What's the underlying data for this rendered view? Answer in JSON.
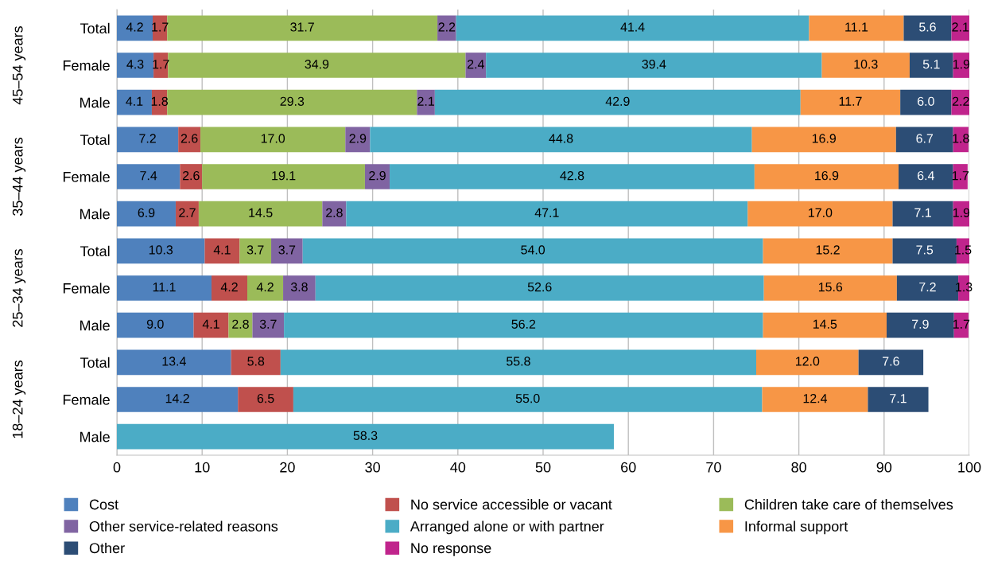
{
  "chart_data": {
    "type": "bar",
    "orientation": "horizontal",
    "stacked": true,
    "grid": "x",
    "legend": "bottom",
    "categories": [
      "Total",
      "Female",
      "Male",
      "Total",
      "Female",
      "Male",
      "Total",
      "Female",
      "Male",
      "Total",
      "Female",
      "Male"
    ],
    "annotations": [
      "45–54 years",
      "35–44 years",
      "25–34 years",
      "18–24 years"
    ],
    "xlim": [
      0,
      100
    ],
    "xticks": [
      0,
      10,
      20,
      30,
      40,
      50,
      60,
      70,
      80,
      90,
      100
    ],
    "series": [
      {
        "name": "Cost",
        "color": "#4f81bd",
        "values": [
          4.2,
          4.3,
          4.1,
          7.2,
          7.4,
          6.9,
          10.3,
          11.1,
          9.0,
          13.4,
          14.2,
          null
        ],
        "value_labels": [
          "4.2",
          "4.3",
          "4.1",
          "7.2",
          "7.4",
          "6.9",
          "10.3",
          "11.1",
          "9.0",
          "13.4",
          "14.2",
          null
        ]
      },
      {
        "name": "No service accessible or vacant",
        "color": "#c0504d",
        "values": [
          1.7,
          1.7,
          1.8,
          2.6,
          2.6,
          2.7,
          4.1,
          4.2,
          4.1,
          5.8,
          6.5,
          null
        ],
        "value_labels": [
          "1.7",
          "1.7",
          "1.8",
          "2.6",
          "2.6",
          "2.7",
          "4.1",
          "4.2",
          "4.1",
          "5.8",
          "6.5",
          null
        ]
      },
      {
        "name": "Children take care of themselves",
        "color": "#9bbb59",
        "values": [
          31.7,
          34.9,
          29.3,
          17.0,
          19.1,
          14.5,
          3.7,
          4.2,
          2.8,
          null,
          null,
          null
        ],
        "value_labels": [
          "31.7",
          "34.9",
          "29.3",
          "17.0",
          "19.1",
          "14.5",
          "3.7",
          "4.2",
          "2.8",
          null,
          null,
          null
        ]
      },
      {
        "name": "Other service-related reasons",
        "color": "#8064a2",
        "values": [
          2.2,
          2.4,
          2.1,
          2.9,
          2.9,
          2.8,
          3.7,
          3.8,
          3.7,
          null,
          null,
          null
        ],
        "value_labels": [
          "2.2",
          "2.4",
          "2.1",
          "2.9",
          "2.9",
          "2.8",
          "3.7",
          "3.8",
          "3.7",
          null,
          null,
          null
        ]
      },
      {
        "name": "Arranged alone or with partner",
        "color": "#4bacc6",
        "values": [
          41.4,
          39.4,
          42.9,
          44.8,
          42.8,
          47.1,
          54.0,
          52.6,
          56.2,
          55.8,
          55.0,
          58.3
        ],
        "value_labels": [
          "41.4",
          "39.4",
          "42.9",
          "44.8",
          "42.8",
          "47.1",
          "54.0",
          "52.6",
          "56.2",
          "55.8",
          "55.0",
          "58.3"
        ]
      },
      {
        "name": "Informal support",
        "color": "#f79646",
        "values": [
          11.1,
          10.3,
          11.7,
          16.9,
          16.9,
          17.0,
          15.2,
          15.6,
          14.5,
          12.0,
          12.4,
          null
        ],
        "value_labels": [
          "11.1",
          "10.3",
          "11.7",
          "16.9",
          "16.9",
          "17.0",
          "15.2",
          "15.6",
          "14.5",
          "12.0",
          "12.4",
          null
        ]
      },
      {
        "name": "Other",
        "color": "#2c4d75",
        "values": [
          5.6,
          5.1,
          6.0,
          6.7,
          6.4,
          7.1,
          7.5,
          7.2,
          7.9,
          7.6,
          7.1,
          null
        ],
        "value_labels": [
          "5.6",
          "5.1",
          "6.0",
          "6.7",
          "6.4",
          "7.1",
          "7.5",
          "7.2",
          "7.9",
          "7.6",
          "7.1",
          null
        ]
      },
      {
        "name": "No response",
        "color": "#c0248c",
        "values": [
          2.1,
          1.9,
          2.2,
          1.8,
          1.7,
          1.9,
          1.5,
          1.3,
          1.7,
          null,
          null,
          null
        ],
        "value_labels": [
          "2.1",
          "1.9",
          "2.2",
          "1.8",
          "1.7",
          "1.9",
          "1.5",
          "1.3",
          "1.7",
          null,
          null,
          null
        ]
      }
    ]
  }
}
